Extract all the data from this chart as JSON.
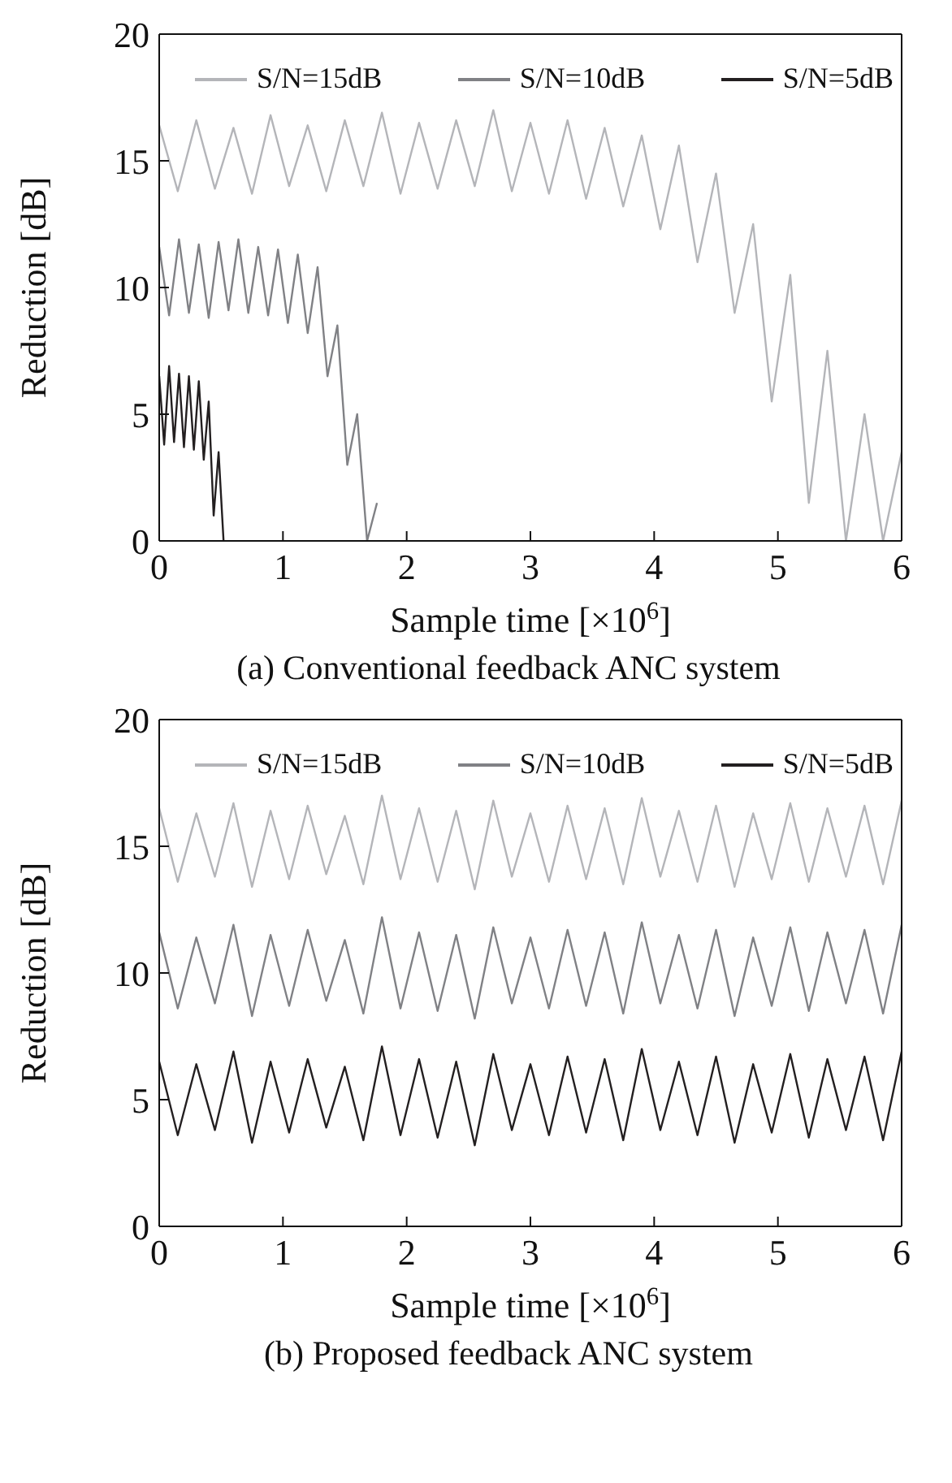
{
  "chart_data": [
    {
      "type": "line",
      "title": "(a) Conventional feedback ANC system",
      "xlabel": "Sample time [×10$^{6}$]",
      "ylabel": "Reduction [dB]",
      "xlim": [
        0,
        6
      ],
      "xticks": [
        0,
        1,
        2,
        3,
        4,
        5,
        6
      ],
      "ylim": [
        0,
        20
      ],
      "yticks": [
        0,
        5,
        10,
        15,
        20
      ],
      "grid": false,
      "legend": "top",
      "marker": "none",
      "line_style": "solid",
      "series": [
        {
          "name": "S/N=15dB",
          "color": "#b4b5b9",
          "x": [
            0,
            0.15,
            0.3,
            0.45,
            0.6,
            0.75,
            0.9,
            1.05,
            1.2,
            1.35,
            1.5,
            1.65,
            1.8,
            1.95,
            2.1,
            2.25,
            2.4,
            2.55,
            2.7,
            2.85,
            3.0,
            3.15,
            3.3,
            3.45,
            3.6,
            3.75,
            3.9,
            4.05,
            4.2,
            4.35,
            4.5,
            4.65,
            4.8,
            4.95,
            5.1,
            5.25,
            5.4,
            5.55,
            5.7,
            5.85,
            6.0
          ],
          "values": [
            16.4,
            13.8,
            16.6,
            13.9,
            16.3,
            13.7,
            16.8,
            14.0,
            16.4,
            13.8,
            16.6,
            14.0,
            16.9,
            13.7,
            16.5,
            13.9,
            16.6,
            14.0,
            17.0,
            13.8,
            16.5,
            13.7,
            16.6,
            13.5,
            16.3,
            13.2,
            16.0,
            12.3,
            15.6,
            11.0,
            14.5,
            9.0,
            12.5,
            5.5,
            10.5,
            1.5,
            7.5,
            0,
            5.0,
            0,
            3.5
          ]
        },
        {
          "name": "S/N=10dB",
          "color": "#808185",
          "x": [
            0,
            0.08,
            0.16,
            0.24,
            0.32,
            0.4,
            0.48,
            0.56,
            0.64,
            0.72,
            0.8,
            0.88,
            0.96,
            1.04,
            1.12,
            1.2,
            1.28,
            1.36,
            1.44,
            1.52,
            1.6,
            1.68,
            1.76
          ],
          "values": [
            11.6,
            8.9,
            11.9,
            9.0,
            11.7,
            8.8,
            11.8,
            9.1,
            11.9,
            9.0,
            11.6,
            8.9,
            11.5,
            8.6,
            11.3,
            8.2,
            10.8,
            6.5,
            8.5,
            3.0,
            5.0,
            0,
            1.5
          ]
        },
        {
          "name": "S/N=5dB",
          "color": "#231f20",
          "x": [
            0,
            0.04,
            0.08,
            0.12,
            0.16,
            0.2,
            0.24,
            0.28,
            0.32,
            0.36,
            0.4,
            0.44,
            0.48,
            0.52
          ],
          "values": [
            6.5,
            3.8,
            6.9,
            3.9,
            6.6,
            3.7,
            6.5,
            3.6,
            6.3,
            3.2,
            5.5,
            1.0,
            3.5,
            0
          ]
        }
      ]
    },
    {
      "type": "line",
      "title": "(b) Proposed feedback ANC system",
      "xlabel": "Sample time [×10$^{6}$]",
      "ylabel": "Reduction [dB]",
      "x": [
        0,
        0.15,
        0.3,
        0.45,
        0.6,
        0.75,
        0.9,
        1.05,
        1.2,
        1.35,
        1.5,
        1.65,
        1.8,
        1.95,
        2.1,
        2.25,
        2.4,
        2.55,
        2.7,
        2.85,
        3.0,
        3.15,
        3.3,
        3.45,
        3.6,
        3.75,
        3.9,
        4.05,
        4.2,
        4.35,
        4.5,
        4.65,
        4.8,
        4.95,
        5.1,
        5.25,
        5.4,
        5.55,
        5.7,
        5.85,
        6.0
      ],
      "xlim": [
        0,
        6
      ],
      "xticks": [
        0,
        1,
        2,
        3,
        4,
        5,
        6
      ],
      "ylim": [
        0,
        20
      ],
      "yticks": [
        0,
        5,
        10,
        15,
        20
      ],
      "grid": false,
      "legend": "top",
      "marker": "none",
      "line_style": "solid",
      "series": [
        {
          "name": "S/N=15dB",
          "color": "#b4b5b9",
          "values": [
            16.5,
            13.6,
            16.3,
            13.8,
            16.7,
            13.4,
            16.4,
            13.7,
            16.6,
            13.9,
            16.2,
            13.5,
            17.0,
            13.7,
            16.5,
            13.6,
            16.4,
            13.3,
            16.8,
            13.8,
            16.3,
            13.6,
            16.6,
            13.7,
            16.5,
            13.5,
            16.9,
            13.8,
            16.4,
            13.6,
            16.6,
            13.4,
            16.3,
            13.7,
            16.7,
            13.6,
            16.5,
            13.8,
            16.6,
            13.5,
            16.8
          ]
        },
        {
          "name": "S/N=10dB",
          "color": "#808185",
          "values": [
            11.6,
            8.6,
            11.4,
            8.8,
            11.9,
            8.3,
            11.5,
            8.7,
            11.7,
            8.9,
            11.3,
            8.4,
            12.2,
            8.6,
            11.6,
            8.5,
            11.5,
            8.2,
            11.8,
            8.8,
            11.4,
            8.6,
            11.7,
            8.7,
            11.6,
            8.4,
            12.0,
            8.8,
            11.5,
            8.6,
            11.7,
            8.3,
            11.4,
            8.7,
            11.8,
            8.5,
            11.6,
            8.8,
            11.7,
            8.4,
            11.9
          ]
        },
        {
          "name": "S/N=5dB",
          "color": "#231f20",
          "values": [
            6.5,
            3.6,
            6.4,
            3.8,
            6.9,
            3.3,
            6.5,
            3.7,
            6.6,
            3.9,
            6.3,
            3.4,
            7.1,
            3.6,
            6.6,
            3.5,
            6.5,
            3.2,
            6.8,
            3.8,
            6.4,
            3.6,
            6.7,
            3.7,
            6.6,
            3.4,
            7.0,
            3.8,
            6.5,
            3.6,
            6.7,
            3.3,
            6.4,
            3.7,
            6.8,
            3.5,
            6.6,
            3.8,
            6.7,
            3.4,
            6.9
          ]
        }
      ]
    }
  ]
}
